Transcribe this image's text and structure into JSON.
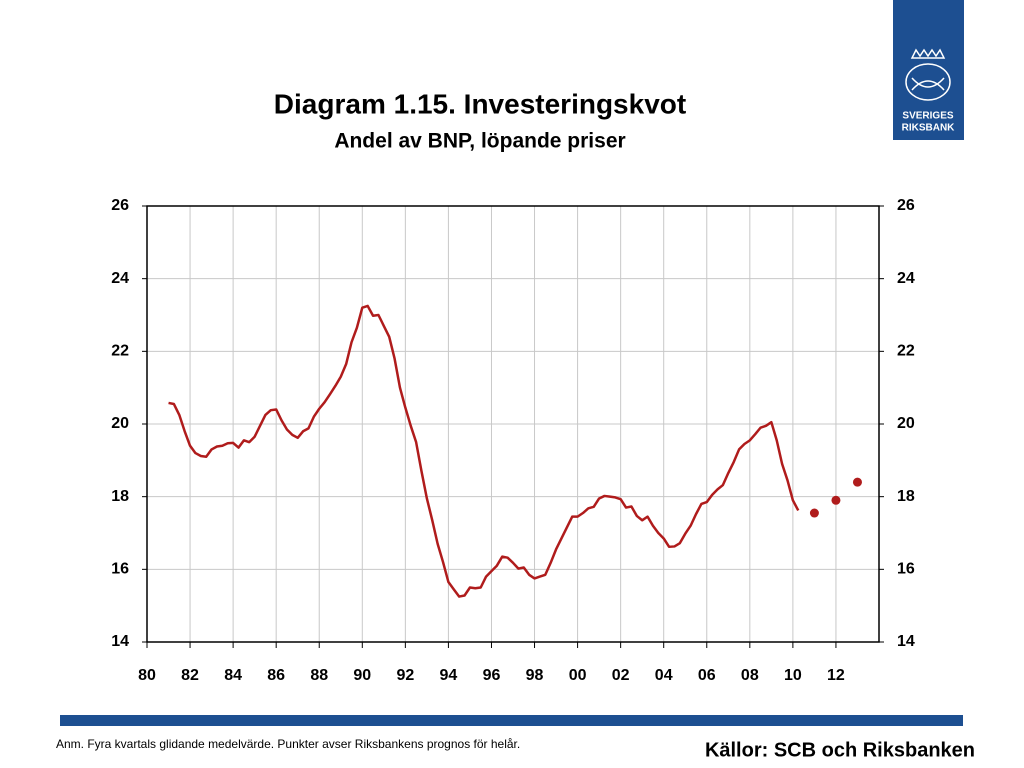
{
  "logo": {
    "line1": "SVERIGES",
    "line2": "RIKSBANK"
  },
  "chart_data": {
    "type": "line",
    "title": "Diagram 1.15. Investeringskvot",
    "subtitle": "Andel av BNP, löpande priser",
    "note": "Anm. Fyra kvartals glidande medelvärde. Punkter avser Riksbankens prognos för helår.",
    "source": "Källor: SCB och Riksbanken",
    "xlim": [
      1980,
      2014
    ],
    "xticks": [
      {
        "value": 1980,
        "label": "80"
      },
      {
        "value": 1982,
        "label": "82"
      },
      {
        "value": 1984,
        "label": "84"
      },
      {
        "value": 1986,
        "label": "86"
      },
      {
        "value": 1988,
        "label": "88"
      },
      {
        "value": 1990,
        "label": "90"
      },
      {
        "value": 1992,
        "label": "92"
      },
      {
        "value": 1994,
        "label": "94"
      },
      {
        "value": 1996,
        "label": "96"
      },
      {
        "value": 1998,
        "label": "98"
      },
      {
        "value": 2000,
        "label": "00"
      },
      {
        "value": 2002,
        "label": "02"
      },
      {
        "value": 2004,
        "label": "04"
      },
      {
        "value": 2006,
        "label": "06"
      },
      {
        "value": 2008,
        "label": "08"
      },
      {
        "value": 2010,
        "label": "10"
      },
      {
        "value": 2012,
        "label": "12"
      }
    ],
    "ylim": [
      14,
      26
    ],
    "yticks": [
      14,
      16,
      18,
      20,
      22,
      24,
      26
    ],
    "y2lim": [
      14,
      26
    ],
    "y2ticks": [
      14,
      16,
      18,
      20,
      22,
      24,
      26
    ],
    "grid": true,
    "series": [
      {
        "color": "#b01c1c",
        "style": "line",
        "x": [
          1981,
          1981.25,
          1981.5,
          1981.75,
          1982,
          1982.25,
          1982.5,
          1982.75,
          1983,
          1983.25,
          1983.5,
          1983.75,
          1984,
          1984.25,
          1984.5,
          1984.75,
          1985,
          1985.25,
          1985.5,
          1985.75,
          1986,
          1986.25,
          1986.5,
          1986.75,
          1987,
          1987.25,
          1987.5,
          1987.75,
          1988,
          1988.25,
          1988.5,
          1988.75,
          1989,
          1989.25,
          1989.5,
          1989.75,
          1990,
          1990.25,
          1990.5,
          1990.75,
          1991,
          1991.25,
          1991.5,
          1991.75,
          1992,
          1992.25,
          1992.5,
          1992.75,
          1993,
          1993.25,
          1993.5,
          1993.75,
          1994,
          1994.25,
          1994.5,
          1994.75,
          1995,
          1995.25,
          1995.5,
          1995.75,
          1996,
          1996.25,
          1996.5,
          1996.75,
          1997,
          1997.25,
          1997.5,
          1997.75,
          1998,
          1998.25,
          1998.5,
          1998.75,
          1999,
          1999.25,
          1999.5,
          1999.75,
          2000,
          2000.25,
          2000.5,
          2000.75,
          2001,
          2001.25,
          2001.5,
          2001.75,
          2002,
          2002.25,
          2002.5,
          2002.75,
          2003,
          2003.25,
          2003.5,
          2003.75,
          2004,
          2004.25,
          2004.5,
          2004.75,
          2005,
          2005.25,
          2005.5,
          2005.75,
          2006,
          2006.25,
          2006.5,
          2006.75,
          2007,
          2007.25,
          2007.5,
          2007.75,
          2008,
          2008.25,
          2008.5,
          2008.75,
          2009,
          2009.25,
          2009.5,
          2009.75,
          2010,
          2010.25
        ],
        "values": [
          20.58,
          20.55,
          20.25,
          19.8,
          19.4,
          19.2,
          19.12,
          19.1,
          19.3,
          19.38,
          19.4,
          19.47,
          19.48,
          19.35,
          19.55,
          19.5,
          19.65,
          19.95,
          20.25,
          20.38,
          20.4,
          20.1,
          19.85,
          19.7,
          19.62,
          19.8,
          19.88,
          20.2,
          20.42,
          20.6,
          20.82,
          21.05,
          21.3,
          21.65,
          22.25,
          22.65,
          23.2,
          23.25,
          22.98,
          23.0,
          22.7,
          22.4,
          21.8,
          21.0,
          20.45,
          19.95,
          19.5,
          18.7,
          17.95,
          17.35,
          16.7,
          16.2,
          15.65,
          15.45,
          15.25,
          15.28,
          15.5,
          15.48,
          15.5,
          15.8,
          15.95,
          16.1,
          16.35,
          16.32,
          16.18,
          16.02,
          16.05,
          15.85,
          15.75,
          15.8,
          15.85,
          16.18,
          16.55,
          16.85,
          17.15,
          17.45,
          17.45,
          17.55,
          17.68,
          17.72,
          17.95,
          18.02,
          18.0,
          17.98,
          17.93,
          17.7,
          17.73,
          17.47,
          17.35,
          17.45,
          17.2,
          17.0,
          16.85,
          16.62,
          16.63,
          16.72,
          16.98,
          17.2,
          17.52,
          17.8,
          17.85,
          18.05,
          18.2,
          18.32,
          18.65,
          18.95,
          19.3,
          19.45,
          19.55,
          19.72,
          19.9,
          19.95,
          20.05,
          19.55,
          18.9,
          18.45,
          17.9,
          17.62
        ]
      },
      {
        "color": "#b01c1c",
        "style": "markers",
        "x": [
          2011,
          2012,
          2013
        ],
        "values": [
          17.55,
          17.9,
          18.4
        ]
      }
    ]
  }
}
